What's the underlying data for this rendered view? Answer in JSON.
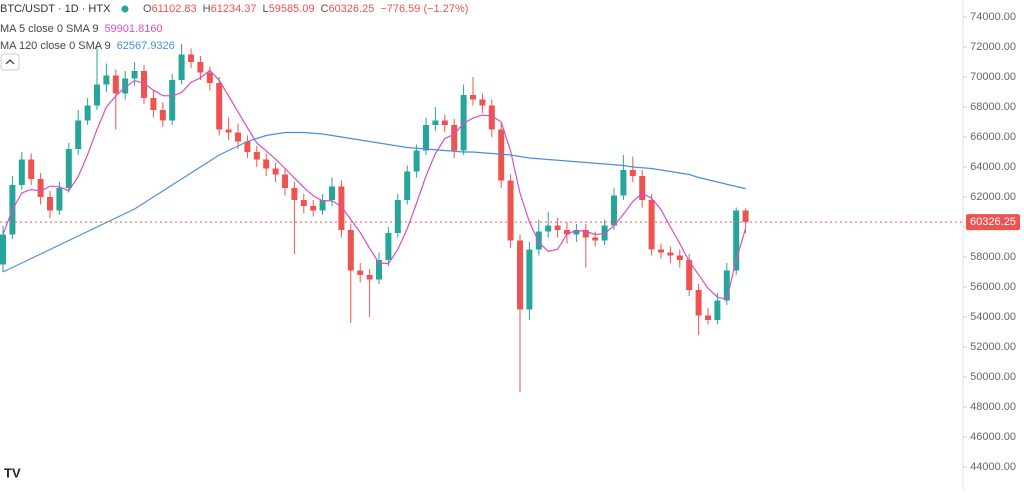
{
  "chart_data": {
    "type": "candlestick",
    "title": "BTC/USDT · 1D · HTX",
    "ohlc": [
      {
        "key": "O",
        "value": "61102.83"
      },
      {
        "key": "H",
        "value": "61234.37"
      },
      {
        "key": "L",
        "value": "59585.09"
      },
      {
        "key": "C",
        "value": "60326.25"
      }
    ],
    "change": "−776.59 (−1.27%)",
    "up_color": "#26a69a",
    "down_color": "#ef5350",
    "open": [
      57500,
      59500,
      62800,
      64500,
      63200,
      62000,
      61100,
      62600,
      65200,
      67100,
      68100,
      69500,
      70100,
      68900,
      69900,
      70400,
      68600,
      67800,
      67100,
      69800,
      71500,
      71000,
      70300,
      69600,
      66500,
      66300,
      65700,
      65000,
      64500,
      63900,
      63500,
      62600,
      61800,
      61400,
      61100,
      61800,
      62700,
      59800,
      57100,
      56800,
      56500,
      57800,
      59600,
      61800,
      63700,
      65100,
      66800,
      67100,
      66800,
      65100,
      68800,
      68500,
      68100,
      66500,
      63100,
      59100,
      54500,
      58500,
      59700,
      60100,
      59800,
      59500,
      59800,
      59300,
      59100,
      60100,
      62100,
      63800,
      63400,
      61800,
      58500,
      58300,
      58100,
      57800,
      55800,
      54100,
      53800,
      55100,
      57100,
      61102.83
    ],
    "high": [
      60100,
      63400,
      65000,
      64900,
      63600,
      62400,
      63000,
      65600,
      67800,
      68600,
      72000,
      70900,
      70500,
      70400,
      71000,
      70800,
      69100,
      68300,
      70200,
      72200,
      71900,
      71400,
      70700,
      70000,
      67300,
      66900,
      66100,
      65400,
      64900,
      64300,
      63900,
      63000,
      62200,
      61800,
      62200,
      63300,
      63100,
      60200,
      57600,
      57200,
      58300,
      60000,
      62200,
      64100,
      65500,
      67300,
      68000,
      67500,
      67200,
      69500,
      70000,
      68900,
      68500,
      66900,
      63500,
      59500,
      59000,
      60500,
      61000,
      60600,
      60300,
      60200,
      60200,
      59700,
      60500,
      62600,
      64800,
      64700,
      63800,
      62200,
      58900,
      58700,
      58500,
      58200,
      56200,
      54600,
      55600,
      57600,
      61300,
      61234.37
    ],
    "low": [
      57000,
      59200,
      62500,
      62800,
      61500,
      60600,
      60800,
      62300,
      64800,
      66800,
      67800,
      69000,
      66500,
      68500,
      69400,
      68200,
      67300,
      66700,
      66800,
      69500,
      70600,
      69800,
      69100,
      66100,
      65800,
      65200,
      64600,
      64000,
      63400,
      63000,
      62100,
      58200,
      60900,
      60700,
      60800,
      61400,
      59300,
      53600,
      56300,
      54000,
      56200,
      57400,
      59300,
      61500,
      63300,
      64800,
      66400,
      66300,
      64600,
      64800,
      68100,
      67600,
      66000,
      62600,
      58600,
      49000,
      53800,
      58100,
      59300,
      59300,
      58900,
      59000,
      57300,
      58700,
      58800,
      59800,
      61800,
      63000,
      61300,
      58100,
      57900,
      57600,
      57300,
      55400,
      52800,
      53500,
      53500,
      54800,
      56800,
      59585.09
    ],
    "close": [
      59500,
      62800,
      64500,
      63200,
      62000,
      61100,
      62600,
      65200,
      67100,
      68100,
      69500,
      70100,
      68900,
      69900,
      70400,
      68600,
      67800,
      67100,
      69800,
      71500,
      71000,
      70300,
      69600,
      66500,
      66300,
      65700,
      65000,
      64500,
      63900,
      63500,
      62600,
      61800,
      61400,
      61100,
      61800,
      62700,
      59800,
      57100,
      56800,
      56500,
      57800,
      59600,
      61800,
      63700,
      65100,
      66800,
      67100,
      66800,
      65100,
      68800,
      68500,
      68100,
      66500,
      63100,
      59100,
      54500,
      58500,
      59700,
      60100,
      59800,
      59500,
      59800,
      59300,
      59100,
      60100,
      62100,
      63800,
      63400,
      61800,
      58500,
      58300,
      58100,
      57800,
      55800,
      54100,
      53800,
      55100,
      57100,
      61100,
      60326.25
    ],
    "series": [
      {
        "name": "MA 5 close 0 SMA 9",
        "color": "#d64fc8",
        "value_label": "59901.8160",
        "values": [
          59500,
          61150,
          62267,
          62500,
          62400,
          62720,
          62680,
          62420,
          63360,
          64820,
          66500,
          68000,
          68740,
          69320,
          69760,
          69580,
          69120,
          68760,
          68740,
          68960,
          69640,
          69940,
          70440,
          69780,
          68740,
          67680,
          66620,
          65600,
          65080,
          64520,
          63900,
          63260,
          62640,
          62080,
          61740,
          61760,
          61360,
          60500,
          59640,
          58580,
          57600,
          57560,
          58500,
          59880,
          61600,
          63400,
          64900,
          65900,
          66180,
          66920,
          67260,
          67460,
          67400,
          67000,
          65060,
          62260,
          60340,
          58980,
          58380,
          58520,
          59520,
          59780,
          59700,
          59500,
          59560,
          60080,
          60840,
          61700,
          62240,
          61920,
          61160,
          60000,
          58900,
          57700,
          56820,
          55920,
          55320,
          55180,
          57800,
          59901.816
        ]
      },
      {
        "name": "MA 120 close 0 SMA 9",
        "color": "#4a90d9",
        "value_label": "62567.9326",
        "values": [
          57000,
          57300,
          57600,
          57900,
          58200,
          58500,
          58800,
          59100,
          59400,
          59700,
          60000,
          60300,
          60600,
          60900,
          61200,
          61600,
          62000,
          62400,
          62800,
          63200,
          63600,
          64000,
          64400,
          64800,
          65100,
          65400,
          65700,
          65900,
          66100,
          66200,
          66300,
          66300,
          66300,
          66250,
          66200,
          66100,
          66000,
          65900,
          65800,
          65700,
          65600,
          65500,
          65400,
          65300,
          65250,
          65200,
          65150,
          65100,
          65050,
          65000,
          65000,
          64950,
          64900,
          64850,
          64800,
          64700,
          64600,
          64550,
          64500,
          64450,
          64400,
          64350,
          64300,
          64250,
          64200,
          64150,
          64100,
          64000,
          63950,
          63900,
          63800,
          63700,
          63600,
          63500,
          63300,
          63150,
          63000,
          62850,
          62700,
          62567.9326
        ]
      }
    ],
    "last_price": 60326.25,
    "ylim": [
      42467,
      75133
    ],
    "yticks": [
      {
        "value": 44000,
        "label": "44000.00"
      },
      {
        "value": 46000,
        "label": "46000.00"
      },
      {
        "value": 48000,
        "label": "48000.00"
      },
      {
        "value": 50000,
        "label": "50000.00"
      },
      {
        "value": 52000,
        "label": "52000.00"
      },
      {
        "value": 54000,
        "label": "54000.00"
      },
      {
        "value": 56000,
        "label": "56000.00"
      },
      {
        "value": 58000,
        "label": "58000.00"
      },
      {
        "value": 60000,
        "label": "60000.00"
      },
      {
        "value": 62000,
        "label": "62000.00"
      },
      {
        "value": 64000,
        "label": "64000.00"
      },
      {
        "value": 66000,
        "label": "66000.00"
      },
      {
        "value": 68000,
        "label": "68000.00"
      },
      {
        "value": 70000,
        "label": "70000.00"
      },
      {
        "value": 72000,
        "label": "72000.00"
      },
      {
        "value": 74000,
        "label": "74000.00"
      }
    ]
  }
}
